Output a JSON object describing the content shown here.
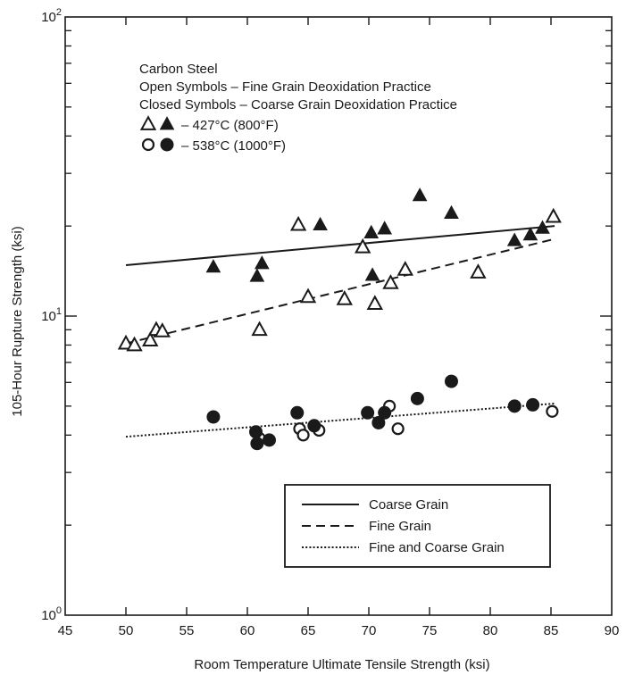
{
  "chart_data": {
    "type": "scatter",
    "xlabel": "Room Temperature Ultimate Tensile Strength (ksi)",
    "ylabel": "105-Hour Rupture Strength (ksi)",
    "xlim": [
      45,
      90
    ],
    "ylim": [
      1,
      100
    ],
    "yscale": "log",
    "x_ticks": [
      45,
      50,
      55,
      60,
      65,
      70,
      75,
      80,
      85,
      90
    ],
    "y_ticks": [
      {
        "value": 1,
        "base": "10",
        "exp": "0"
      },
      {
        "value": 10,
        "base": "10",
        "exp": "1"
      },
      {
        "value": 100,
        "base": "10",
        "exp": "2"
      }
    ],
    "notes": [
      "Carbon Steel",
      "Open Symbols – Fine Grain Deoxidation Practice",
      "Closed Symbols – Coarse Grain Deoxidation Practice"
    ],
    "symbol_key": [
      {
        "symbol": "triangle",
        "label": "– 427°C (800°F)"
      },
      {
        "symbol": "circle",
        "label": "– 538°C (1000°F)"
      }
    ],
    "series": [
      {
        "marker": "triangle",
        "fill": "open",
        "points": [
          [
            50.0,
            8.1
          ],
          [
            50.7,
            8.0
          ],
          [
            52.0,
            8.3
          ],
          [
            52.5,
            9.0
          ],
          [
            53.0,
            8.9
          ],
          [
            61.0,
            9.0
          ],
          [
            64.2,
            20.2
          ],
          [
            65.0,
            11.6
          ],
          [
            68.0,
            11.4
          ],
          [
            69.5,
            17.0
          ],
          [
            70.5,
            11.0
          ],
          [
            71.8,
            12.9
          ],
          [
            73.0,
            14.3
          ],
          [
            79.0,
            14.0
          ],
          [
            85.2,
            21.5
          ]
        ]
      },
      {
        "marker": "triangle",
        "fill": "solid",
        "points": [
          [
            57.2,
            14.6
          ],
          [
            60.8,
            13.6
          ],
          [
            61.2,
            15.0
          ],
          [
            66.0,
            20.2
          ],
          [
            70.2,
            19.0
          ],
          [
            70.3,
            13.7
          ],
          [
            71.3,
            19.6
          ],
          [
            74.2,
            25.3
          ],
          [
            76.8,
            22.1
          ],
          [
            82.0,
            17.9
          ],
          [
            83.3,
            18.7
          ],
          [
            84.3,
            19.7
          ]
        ]
      },
      {
        "marker": "circle",
        "fill": "open",
        "points": [
          [
            61.0,
            3.9
          ],
          [
            64.3,
            4.2
          ],
          [
            64.6,
            4.0
          ],
          [
            65.9,
            4.15
          ],
          [
            71.7,
            5.0
          ],
          [
            72.4,
            4.2
          ],
          [
            85.1,
            4.8
          ]
        ]
      },
      {
        "marker": "circle",
        "fill": "solid",
        "points": [
          [
            57.2,
            4.6
          ],
          [
            60.7,
            4.1
          ],
          [
            60.8,
            3.75
          ],
          [
            61.8,
            3.85
          ],
          [
            64.1,
            4.75
          ],
          [
            65.5,
            4.3
          ],
          [
            69.9,
            4.75
          ],
          [
            70.8,
            4.4
          ],
          [
            71.3,
            4.75
          ],
          [
            74.0,
            5.3
          ],
          [
            76.8,
            6.05
          ],
          [
            82.0,
            5.0
          ],
          [
            83.5,
            5.05
          ]
        ]
      }
    ],
    "fit_lines": [
      {
        "name": "Coarse Grain",
        "style": "solid",
        "x": [
          50,
          85.3
        ],
        "y": [
          14.8,
          20.0
        ]
      },
      {
        "name": "Fine Grain",
        "style": "dashed",
        "x": [
          50,
          85.3
        ],
        "y": [
          8.1,
          18.1
        ]
      },
      {
        "name": "Fine and Coarse Grain",
        "style": "dotted",
        "x": [
          50,
          85.3
        ],
        "y": [
          3.95,
          5.1
        ]
      }
    ],
    "legend_position": "bottom-right",
    "grid": false
  }
}
